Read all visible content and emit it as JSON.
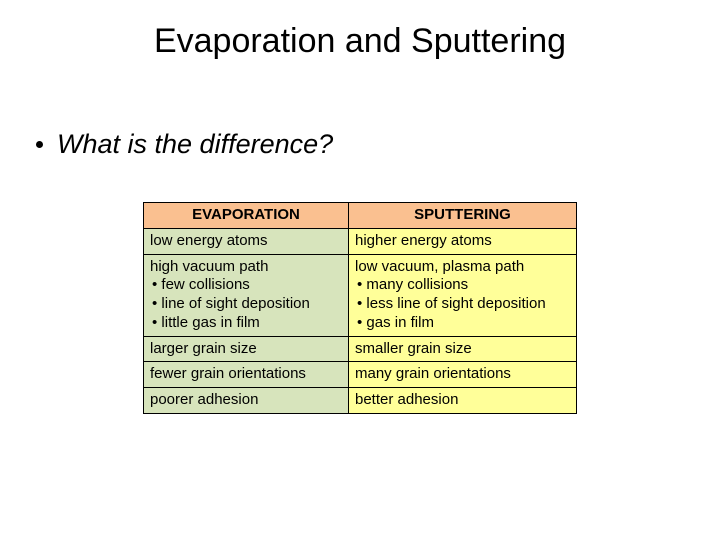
{
  "title": "Evaporation and Sputtering",
  "question": "What is the difference?",
  "table": {
    "header_bg": "#fac090",
    "left_bg": "#d7e4bc",
    "right_bg": "#ffff99",
    "columns": [
      "EVAPORATION",
      "SPUTTERING"
    ],
    "rows": [
      {
        "left": [
          "low energy atoms"
        ],
        "right": [
          "higher energy atoms"
        ]
      },
      {
        "left": [
          "high vacuum path",
          "• few collisions",
          "• line of sight deposition",
          "• little gas in film"
        ],
        "right": [
          "low vacuum, plasma path",
          "• many collisions",
          "• less line of sight deposition",
          "• gas in film"
        ]
      },
      {
        "left": [
          "larger grain size"
        ],
        "right": [
          "smaller grain size"
        ]
      },
      {
        "left": [
          "fewer grain orientations"
        ],
        "right": [
          "many grain orientations"
        ]
      },
      {
        "left": [
          "poorer adhesion"
        ],
        "right": [
          "better adhesion"
        ]
      }
    ]
  }
}
